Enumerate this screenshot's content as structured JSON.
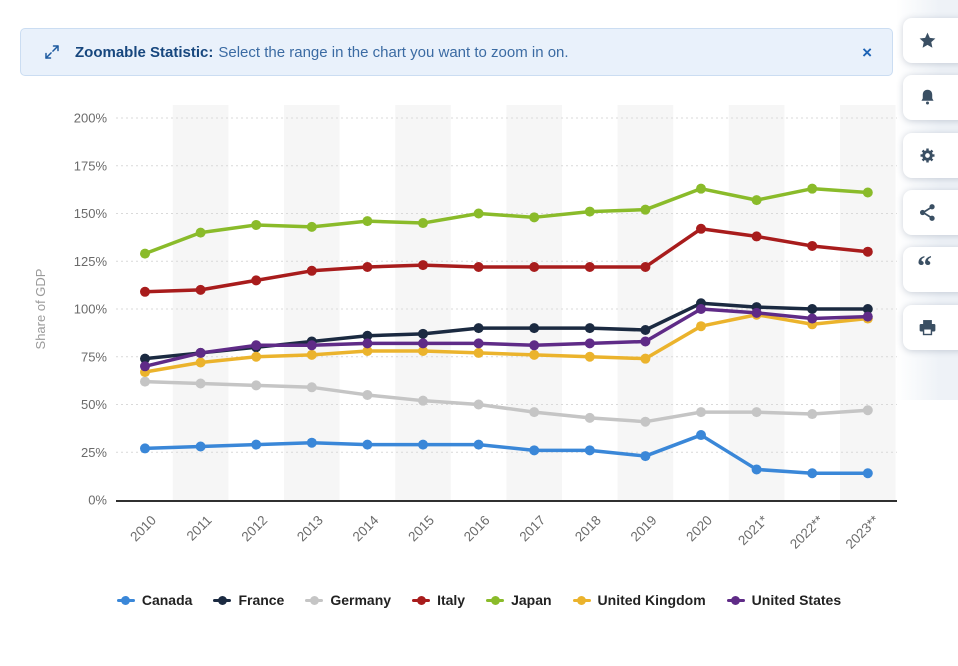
{
  "banner": {
    "title": "Zoomable Statistic:",
    "message": "Select the range in the chart you want to zoom in on.",
    "close_label": "×",
    "icon": "expand-icon",
    "accent_color": "#17477e"
  },
  "sidebar": {
    "items": [
      {
        "icon": "star-icon"
      },
      {
        "icon": "bell-icon"
      },
      {
        "icon": "gear-icon"
      },
      {
        "icon": "share-icon"
      },
      {
        "icon": "quote-icon",
        "glyph": "“"
      },
      {
        "icon": "printer-icon"
      }
    ],
    "icon_color": "#3a4f63"
  },
  "chart_data": {
    "type": "line",
    "title": "",
    "ylabel": "Share of GDP",
    "xlabel": "",
    "x_labels": [
      "2010",
      "2011",
      "2012",
      "2013",
      "2014",
      "2015",
      "2016",
      "2017",
      "2018",
      "2019",
      "2020",
      "2021*",
      "2022**",
      "2023**"
    ],
    "y_ticks": [
      0,
      25,
      50,
      75,
      100,
      125,
      150,
      175,
      200
    ],
    "y_tick_suffix": "%",
    "ylim": [
      0,
      200
    ],
    "grid": "horizontal-dashed",
    "legend_position": "bottom",
    "band_color": "#f6f6f6",
    "series": [
      {
        "name": "Canada",
        "color": "#3a87d8",
        "values": [
          27,
          28,
          29,
          30,
          29,
          29,
          29,
          26,
          26,
          23,
          34,
          16,
          14,
          14
        ]
      },
      {
        "name": "France",
        "color": "#1b2a41",
        "values": [
          74,
          77,
          80,
          83,
          86,
          87,
          90,
          90,
          90,
          89,
          103,
          101,
          100,
          100
        ]
      },
      {
        "name": "Germany",
        "color": "#c5c5c5",
        "values": [
          62,
          61,
          60,
          59,
          55,
          52,
          50,
          46,
          43,
          41,
          46,
          46,
          45,
          47
        ]
      },
      {
        "name": "Italy",
        "color": "#a81c1c",
        "values": [
          109,
          110,
          115,
          120,
          122,
          123,
          122,
          122,
          122,
          122,
          142,
          138,
          133,
          130
        ]
      },
      {
        "name": "Japan",
        "color": "#8abb2a",
        "values": [
          129,
          140,
          144,
          143,
          146,
          145,
          150,
          148,
          151,
          152,
          163,
          157,
          163,
          161
        ]
      },
      {
        "name": "United Kingdom",
        "color": "#ebb32c",
        "values": [
          67,
          72,
          75,
          76,
          78,
          78,
          77,
          76,
          75,
          74,
          91,
          97,
          92,
          95
        ]
      },
      {
        "name": "United States",
        "color": "#5f2b87",
        "values": [
          70,
          77,
          81,
          81,
          82,
          82,
          82,
          81,
          82,
          83,
          100,
          98,
          95,
          96
        ]
      }
    ]
  }
}
